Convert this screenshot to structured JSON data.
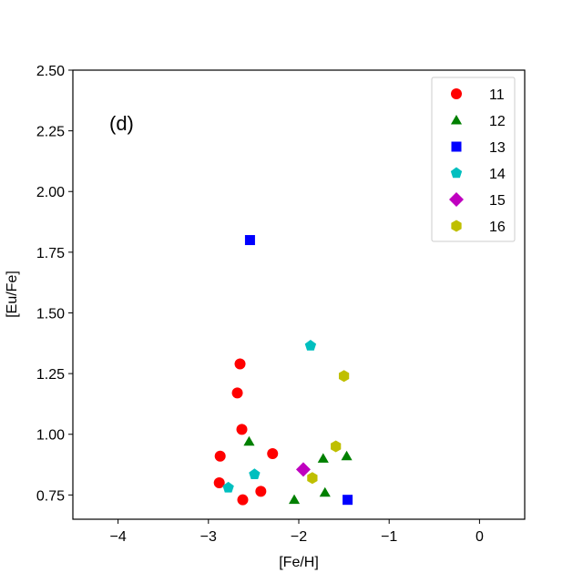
{
  "chart_data": {
    "type": "scatter",
    "panel_label": "(d)",
    "xlabel": "[Fe/H]",
    "ylabel": "[Eu/Fe]",
    "xlim": [
      -4.5,
      0.5
    ],
    "ylim": [
      0.65,
      2.5
    ],
    "xticks": [
      {
        "value": -4,
        "label": "−4"
      },
      {
        "value": -3,
        "label": "−3"
      },
      {
        "value": -2,
        "label": "−2"
      },
      {
        "value": -1,
        "label": "−1"
      },
      {
        "value": 0,
        "label": "0"
      }
    ],
    "yticks": [
      {
        "value": 0.75,
        "label": "0.75"
      },
      {
        "value": 1.0,
        "label": "1.00"
      },
      {
        "value": 1.25,
        "label": "1.25"
      },
      {
        "value": 1.5,
        "label": "1.50"
      },
      {
        "value": 1.75,
        "label": "1.75"
      },
      {
        "value": 2.0,
        "label": "2.00"
      },
      {
        "value": 2.25,
        "label": "2.25"
      },
      {
        "value": 2.5,
        "label": "2.50"
      }
    ],
    "grid": false,
    "legend_position": "top-right",
    "series": [
      {
        "name": "11",
        "marker": "circle",
        "color": "#ff0000",
        "points": [
          [
            -2.65,
            1.29
          ],
          [
            -2.68,
            1.17
          ],
          [
            -2.63,
            1.02
          ],
          [
            -2.87,
            0.91
          ],
          [
            -2.29,
            0.92
          ],
          [
            -2.88,
            0.8
          ],
          [
            -2.62,
            0.73
          ],
          [
            -2.42,
            0.765
          ]
        ]
      },
      {
        "name": "12",
        "marker": "triangle",
        "color": "#008000",
        "points": [
          [
            -2.55,
            0.97
          ],
          [
            -1.73,
            0.9
          ],
          [
            -1.47,
            0.91
          ],
          [
            -1.71,
            0.76
          ],
          [
            -2.05,
            0.73
          ]
        ]
      },
      {
        "name": "13",
        "marker": "square",
        "color": "#0000ff",
        "points": [
          [
            -2.54,
            1.8
          ],
          [
            -1.46,
            0.73
          ]
        ]
      },
      {
        "name": "14",
        "marker": "pentagon",
        "color": "#00bfbf",
        "points": [
          [
            -1.87,
            1.365
          ],
          [
            -2.49,
            0.835
          ],
          [
            -2.78,
            0.78
          ]
        ]
      },
      {
        "name": "15",
        "marker": "diamond",
        "color": "#bf00bf",
        "points": [
          [
            -1.95,
            0.855
          ]
        ]
      },
      {
        "name": "16",
        "marker": "hexagon",
        "color": "#bfbf00",
        "points": [
          [
            -1.5,
            1.24
          ],
          [
            -1.59,
            0.95
          ],
          [
            -1.85,
            0.82
          ]
        ]
      }
    ]
  }
}
